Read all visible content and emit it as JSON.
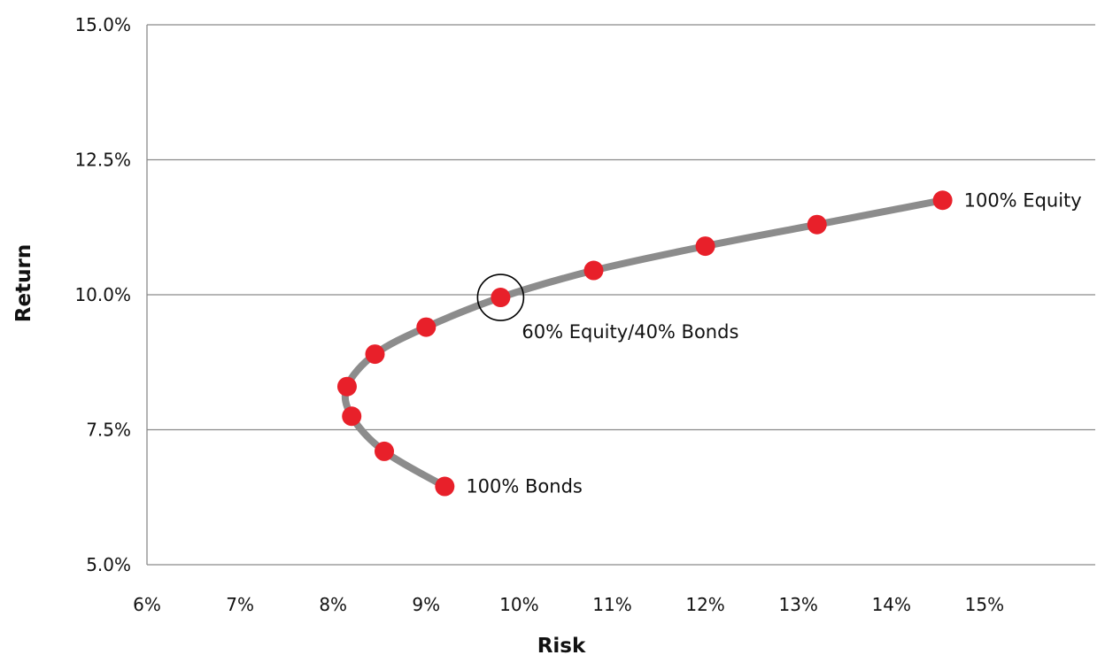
{
  "chart_data": {
    "type": "line",
    "xlabel": "Risk",
    "ylabel": "Return",
    "xlim": [
      6,
      15.6
    ],
    "ylim": [
      5.0,
      15.0
    ],
    "x_ticks": [
      6,
      7,
      8,
      9,
      10,
      11,
      12,
      13,
      14,
      15
    ],
    "x_tick_labels": [
      "6%",
      "7%",
      "8%",
      "9%",
      "10%",
      "11%",
      "12%",
      "13%",
      "14%",
      "15%"
    ],
    "y_ticks": [
      5.0,
      7.5,
      10.0,
      12.5,
      15.0
    ],
    "y_tick_labels": [
      "5.0%",
      "7.5%",
      "10.0%",
      "12.5%",
      "15.0%"
    ],
    "grid": "horizontal",
    "series": [
      {
        "x": [
          9.2,
          8.55,
          8.2,
          8.15,
          8.45,
          9.0,
          9.8,
          10.8,
          12.0,
          13.2,
          14.55
        ],
        "y": [
          6.45,
          7.1,
          7.75,
          8.3,
          8.9,
          9.4,
          9.95,
          10.45,
          10.9,
          11.3,
          11.75
        ]
      }
    ],
    "annotations": [
      {
        "x": 9.2,
        "y": 6.45,
        "text": "100% Bonds"
      },
      {
        "x": 9.8,
        "y": 9.95,
        "text": "60% Equity/40% Bonds",
        "highlight": true
      },
      {
        "x": 14.55,
        "y": 11.75,
        "text": "100% Equity"
      }
    ],
    "colors": {
      "curve": "#8c8c8c",
      "point": "#e8202a",
      "grid": "#8a8a8a",
      "highlight_ring": "#000000"
    }
  }
}
